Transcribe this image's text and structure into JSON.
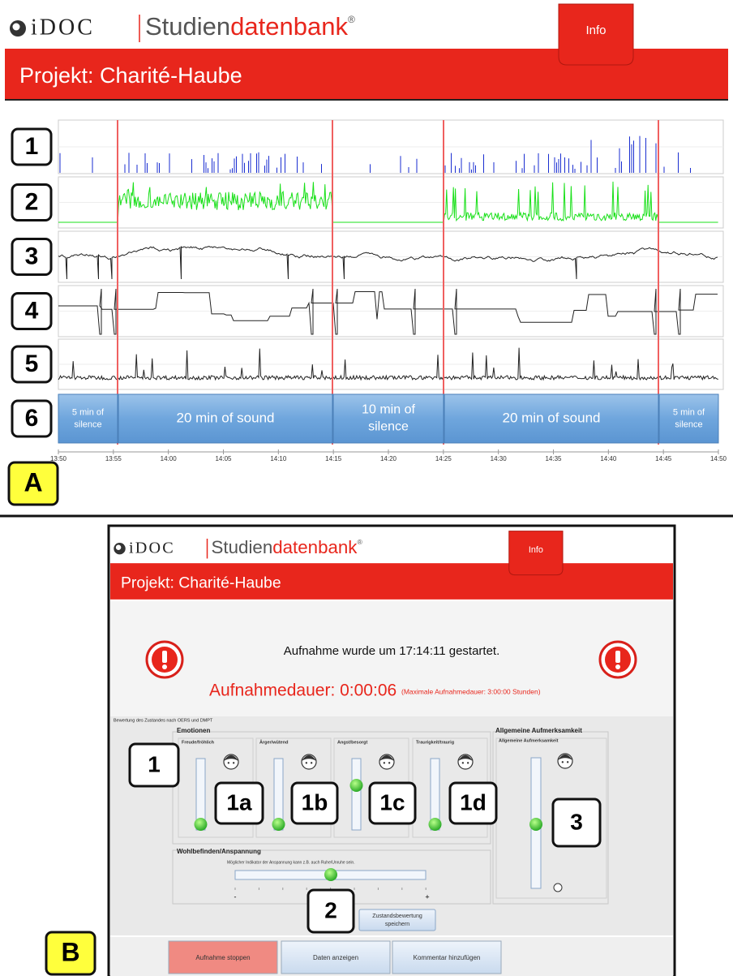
{
  "panel_a": {
    "label": "A",
    "header": {
      "logo": "iDOC",
      "brand_gray": "Studien",
      "brand_red": "datenbank",
      "registered": "®",
      "info_tab": "Info",
      "project": "Projekt: Charité-Haube"
    },
    "row_labels": [
      "1",
      "2",
      "3",
      "4",
      "5",
      "6"
    ],
    "segments": [
      {
        "lines": [
          "5 min of",
          "silence"
        ]
      },
      {
        "lines": [
          "20 min of sound"
        ]
      },
      {
        "lines": [
          "10 min of",
          "silence"
        ]
      },
      {
        "lines": [
          "20 min of sound"
        ]
      },
      {
        "lines": [
          "5 min of",
          "silence"
        ]
      }
    ],
    "time_ticks": [
      "13:50",
      "13:55",
      "14:00",
      "14:05",
      "14:10",
      "14:15",
      "14:20",
      "14:25",
      "14:30",
      "14:35",
      "14:40",
      "14:45",
      "14:50"
    ]
  },
  "panel_b": {
    "label": "B",
    "header": {
      "logo": "iDOC",
      "brand_gray": "Studien",
      "brand_red": "datenbank",
      "registered": "®",
      "info_tab": "Info",
      "project": "Projekt: Charité-Haube"
    },
    "status": "Aufnahme wurde um 17:14:11 gestartet.",
    "duration": "Aufnahmedauer: 0:00:06",
    "max_duration": "(Maximale Aufnahmedauer: 3:00:00 Stunden)",
    "section_caption": "Bewertung des Zustandes nach OERS und DMPT",
    "emotions": {
      "title": "Emotionen",
      "sliders": [
        "Freude/fröhlich",
        "Ärger/wütend",
        "Angst/besorgt",
        "Traurigkeit/traurig"
      ]
    },
    "wellbeing": {
      "title": "Wohlbefinden/Anspannung",
      "subtitle": "Möglicher Indikator der Anspannung kann z.B. auch Ruhe/Unruhe sein.",
      "minus": "-",
      "plus": "+"
    },
    "attention": {
      "title": "Allgemeine Aufmerksamkeit",
      "inner_title": "Allgemeine Aufmerksamkeit"
    },
    "save_button": [
      "Zustandsbewertung",
      "speichern"
    ],
    "buttons": [
      "Aufnahme stoppen",
      "Daten anzeigen",
      "Kommentar hinzufügen"
    ],
    "callouts": [
      "1",
      "1a",
      "1b",
      "1c",
      "1d",
      "2",
      "3"
    ]
  }
}
